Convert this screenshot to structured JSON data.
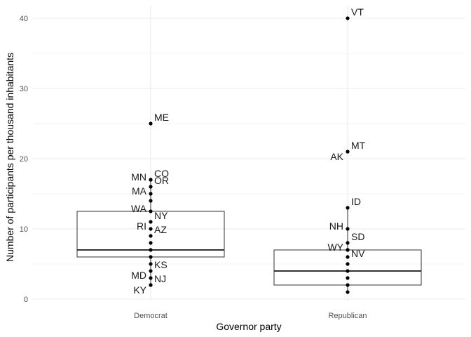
{
  "chart_data": {
    "type": "boxplot_with_points",
    "xlabel": "Governor party",
    "ylabel": "Number of participants per thousand inhabitants",
    "categories": [
      "Democrat",
      "Republican"
    ],
    "ylim": [
      -0.5,
      42
    ],
    "yticks": [
      0,
      10,
      20,
      30,
      40
    ],
    "grid": true,
    "boxes": [
      {
        "category": "Democrat",
        "q1": 6,
        "median": 7,
        "q3": 12.5,
        "whisker_low": 2,
        "whisker_high": 17
      },
      {
        "category": "Republican",
        "q1": 2,
        "median": 4,
        "q3": 7,
        "whisker_low": 1,
        "whisker_high": 13
      }
    ],
    "points": [
      {
        "category": "Democrat",
        "y": 25,
        "label": "ME",
        "side": "right"
      },
      {
        "category": "Democrat",
        "y": 17,
        "label": "MN",
        "side": "left"
      },
      {
        "category": "Democrat",
        "y": 17,
        "label": "CO",
        "side": "right"
      },
      {
        "category": "Democrat",
        "y": 16,
        "label": "OR",
        "side": "right"
      },
      {
        "category": "Democrat",
        "y": 15,
        "label": "MA",
        "side": "left"
      },
      {
        "category": "Democrat",
        "y": 14,
        "label": "",
        "side": "right"
      },
      {
        "category": "Democrat",
        "y": 12.5,
        "label": "WA",
        "side": "left"
      },
      {
        "category": "Democrat",
        "y": 11,
        "label": "NY",
        "side": "right"
      },
      {
        "category": "Democrat",
        "y": 10,
        "label": "RI",
        "side": "left"
      },
      {
        "category": "Democrat",
        "y": 9,
        "label": "AZ",
        "side": "right"
      },
      {
        "category": "Democrat",
        "y": 8,
        "label": "",
        "side": "right"
      },
      {
        "category": "Democrat",
        "y": 7,
        "label": "",
        "side": "right"
      },
      {
        "category": "Democrat",
        "y": 6,
        "label": "",
        "side": "right"
      },
      {
        "category": "Democrat",
        "y": 5,
        "label": "",
        "side": "right"
      },
      {
        "category": "Democrat",
        "y": 4,
        "label": "KS",
        "side": "right"
      },
      {
        "category": "Democrat",
        "y": 3,
        "label": "MD",
        "side": "left"
      },
      {
        "category": "Democrat",
        "y": 2,
        "label": "NJ",
        "side": "right"
      },
      {
        "category": "Democrat",
        "y": 2,
        "label": "KY",
        "side": "left-low"
      },
      {
        "category": "Republican",
        "y": 40,
        "label": "VT",
        "side": "right"
      },
      {
        "category": "Republican",
        "y": 21,
        "label": "MT",
        "side": "right"
      },
      {
        "category": "Republican",
        "y": 21,
        "label": "AK",
        "side": "left-low"
      },
      {
        "category": "Republican",
        "y": 13,
        "label": "ID",
        "side": "right"
      },
      {
        "category": "Republican",
        "y": 10,
        "label": "NH",
        "side": "left"
      },
      {
        "category": "Republican",
        "y": 8,
        "label": "SD",
        "side": "right"
      },
      {
        "category": "Republican",
        "y": 7,
        "label": "WY",
        "side": "left"
      },
      {
        "category": "Republican",
        "y": 7,
        "label": "NV",
        "side": "right-low"
      },
      {
        "category": "Republican",
        "y": 6,
        "label": "",
        "side": "right"
      },
      {
        "category": "Republican",
        "y": 5,
        "label": "",
        "side": "right"
      },
      {
        "category": "Republican",
        "y": 4,
        "label": "",
        "side": "right"
      },
      {
        "category": "Republican",
        "y": 3,
        "label": "",
        "side": "right"
      },
      {
        "category": "Republican",
        "y": 2,
        "label": "",
        "side": "right"
      },
      {
        "category": "Republican",
        "y": 1,
        "label": "",
        "side": "right"
      }
    ],
    "colors": {
      "grid": "#ebebeb",
      "box": "#333333",
      "point": "#000000",
      "background": "#ffffff"
    }
  }
}
